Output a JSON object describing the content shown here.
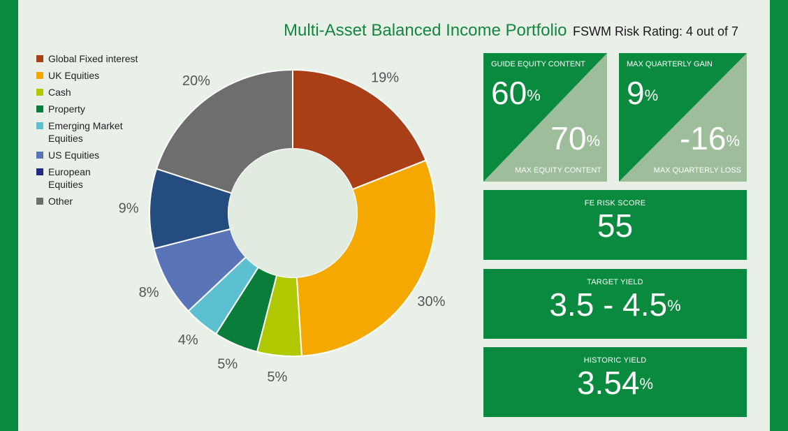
{
  "header": {
    "title": "Multi-Asset Balanced Income Portfolio",
    "subtitle": "FSWM Risk Rating: 4 out of 7"
  },
  "chart_data": {
    "type": "pie",
    "style": "donut",
    "categories": [
      "Global Fixed interest",
      "UK Equities",
      "Cash",
      "Property",
      "Emerging Market Equities",
      "US Equities",
      "European Equities",
      "Other"
    ],
    "legend_lines": [
      [
        "Global Fixed interest"
      ],
      [
        "UK Equities"
      ],
      [
        "Cash"
      ],
      [
        "Property"
      ],
      [
        "Emerging Market",
        "Equities"
      ],
      [
        "US Equities"
      ],
      [
        "European",
        "Equities"
      ],
      [
        "Other"
      ]
    ],
    "values": [
      19,
      30,
      5,
      5,
      4,
      8,
      9,
      20
    ],
    "value_labels": [
      "19%",
      "30%",
      "5%",
      "5%",
      "4%",
      "8%",
      "9%",
      "20%"
    ],
    "colors": [
      "#a93f17",
      "#f5a800",
      "#b0c800",
      "#0a7d3b",
      "#5dc0d0",
      "#5a74b8",
      "#244c7e",
      "#6e6e6e"
    ],
    "legend_colors": [
      "#a93f17",
      "#f5a800",
      "#b0c800",
      "#0a7d3b",
      "#5dc0d0",
      "#5a74b8",
      "#244c7e",
      "#6e6e6e"
    ],
    "legend_colors_note": "",
    "legend_position": "left"
  },
  "legend_override_colors": [
    "#a93f17",
    "#f5a800",
    "#b0c800",
    "#0a7d3b",
    "#5dc0d0",
    "#5a74b8",
    "#1f2a80",
    "#6e6e6e"
  ],
  "stats": {
    "equity": {
      "top_label": "GUIDE EQUITY CONTENT",
      "top_value": "60",
      "bottom_value": "70",
      "bottom_label": "MAX EQUITY CONTENT",
      "unit": "%"
    },
    "quarterly": {
      "top_label": "MAX QUARTERLY GAIN",
      "top_value": "9",
      "bottom_value": "-16",
      "bottom_label": "MAX QUARTERLY LOSS",
      "unit": "%"
    },
    "risk": {
      "label": "FE RISK SCORE",
      "value": "55"
    },
    "target_yield": {
      "label": "TARGET YIELD",
      "value": "3.5 - 4.5",
      "unit": "%"
    },
    "historic_yield": {
      "label": "HISTORIC YIELD",
      "value": "3.54",
      "unit": "%"
    }
  },
  "colors": {
    "brand_green": "#0a8a3f",
    "panel_bg": "#e9f0e8",
    "triangle_light": "#9dbd9b"
  }
}
